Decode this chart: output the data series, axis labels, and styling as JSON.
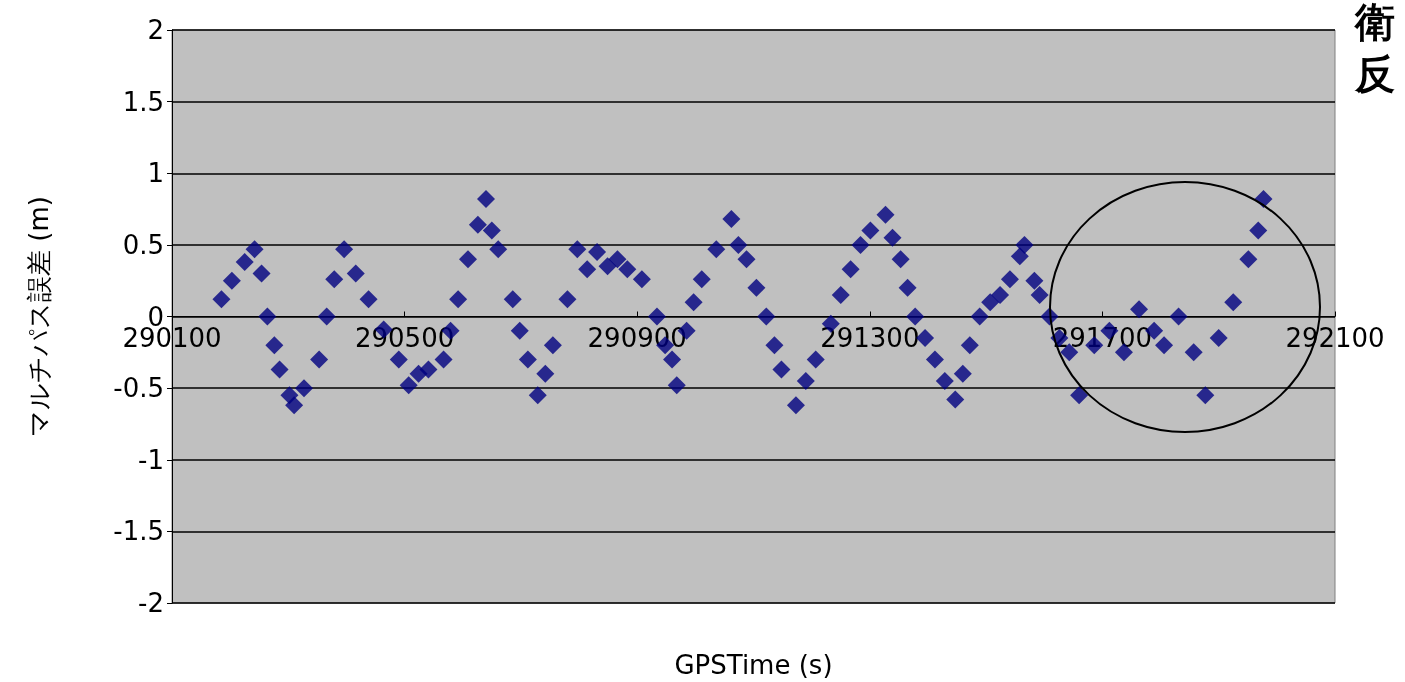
{
  "chart_data": {
    "type": "scatter",
    "xlabel": "GPSTime (s)",
    "ylabel": "マルチパス誤差 (m)",
    "annotations": [
      "衛",
      "反"
    ],
    "xlim": [
      290100,
      292100
    ],
    "xticks": [
      290100,
      290500,
      290900,
      291300,
      291700,
      292100
    ],
    "ylim": [
      -2,
      2
    ],
    "yticks": [
      -2,
      -1.5,
      -1,
      -0.5,
      0,
      0.5,
      1,
      1.5,
      2
    ],
    "grid": "y",
    "marker": "diamond",
    "series": [
      {
        "color": "#000080",
        "x": [
          290185,
          290203,
          290225,
          290242,
          290254,
          290264,
          290276,
          290285,
          290302,
          290310,
          290327,
          290353,
          290366,
          290379,
          290396,
          290416,
          290438,
          290464,
          290490,
          290507,
          290524,
          290541,
          290567,
          290579,
          290592,
          290609,
          290626,
          290640,
          290650,
          290661,
          290686,
          290698,
          290712,
          290729,
          290742,
          290755,
          290780,
          290797,
          290814,
          290831,
          290849,
          290866,
          290883,
          290908,
          290934,
          290948,
          290960,
          290968,
          290985,
          290997,
          291011,
          291036,
          291062,
          291074,
          291088,
          291105,
          291122,
          291136,
          291148,
          291173,
          291190,
          291207,
          291233,
          291250,
          291267,
          291284,
          291301,
          291327,
          291339,
          291353,
          291365,
          291378,
          291395,
          291412,
          291429,
          291447,
          291460,
          291472,
          291489,
          291507,
          291524,
          291541,
          291558,
          291566,
          291583,
          291592,
          291609,
          291626,
          291643,
          291660,
          291686,
          291712,
          291737,
          291763,
          291789,
          291806,
          291831,
          291857,
          291877,
          291900,
          291925,
          291951,
          291968,
          291977
        ],
        "values": [
          0.12,
          0.25,
          0.38,
          0.47,
          0.3,
          0,
          -0.2,
          -0.37,
          -0.55,
          -0.62,
          -0.5,
          -0.3,
          0,
          0.26,
          0.47,
          0.3,
          0.12,
          -0.09,
          -0.3,
          -0.48,
          -0.4,
          -0.37,
          -0.3,
          -0.1,
          0.12,
          0.4,
          0.64,
          0.82,
          0.6,
          0.47,
          0.12,
          -0.1,
          -0.3,
          -0.55,
          -0.4,
          -0.2,
          0.12,
          0.47,
          0.33,
          0.45,
          0.35,
          0.4,
          0.33,
          0.26,
          0,
          -0.2,
          -0.3,
          -0.48,
          -0.1,
          0.1,
          0.26,
          0.47,
          0.68,
          0.5,
          0.4,
          0.2,
          0,
          -0.2,
          -0.37,
          -0.62,
          -0.45,
          -0.3,
          -0.05,
          0.15,
          0.33,
          0.5,
          0.6,
          0.71,
          0.55,
          0.4,
          0.2,
          0,
          -0.15,
          -0.3,
          -0.45,
          -0.58,
          -0.4,
          -0.2,
          0,
          0.1,
          0.15,
          0.26,
          0.42,
          0.5,
          0.25,
          0.15,
          0,
          -0.15,
          -0.25,
          -0.55,
          -0.2,
          -0.1,
          -0.25,
          0.05,
          -0.1,
          -0.2,
          0,
          -0.25,
          -0.55,
          -0.15,
          0.1,
          0.4,
          0.6,
          0.82
        ]
      }
    ]
  }
}
